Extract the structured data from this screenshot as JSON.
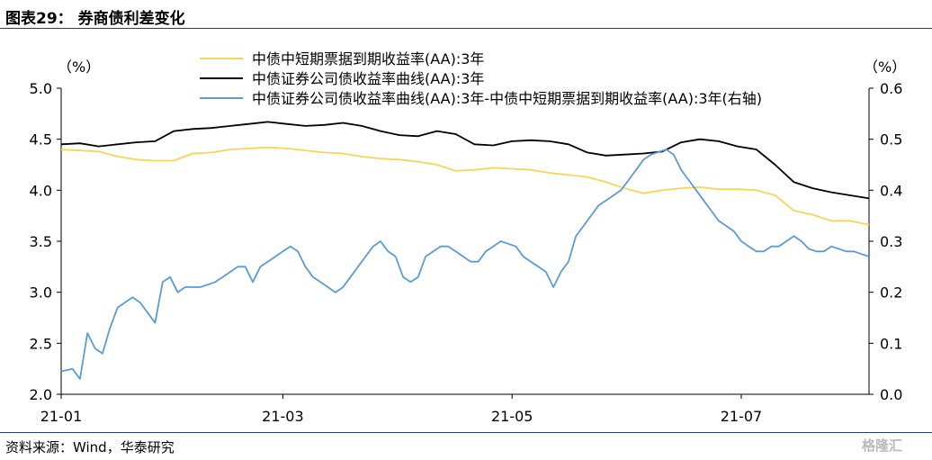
{
  "header": {
    "title": "图表29：  券商债利差变化"
  },
  "footer": {
    "source": "资料来源：Wind，华泰研究",
    "watermark": "格隆汇"
  },
  "chart_data": {
    "type": "line",
    "xlabel": "",
    "ylabel_left": "（%）",
    "ylabel_right": "（%）",
    "ylim_left": [
      2.0,
      5.0
    ],
    "ylim_right": [
      0.0,
      0.6
    ],
    "yticks_left": [
      "2.0",
      "2.5",
      "3.0",
      "3.5",
      "4.0",
      "4.5",
      "5.0"
    ],
    "yticks_right": [
      "0.0",
      "0.1",
      "0.2",
      "0.3",
      "0.4",
      "0.5",
      "0.6"
    ],
    "xticks": [
      "21-01",
      "21-03",
      "21-05",
      "21-07"
    ],
    "xtick_positions": [
      0,
      59,
      120,
      181
    ],
    "xlim": [
      0,
      215
    ],
    "legend_position": "top-center",
    "series": [
      {
        "name": "中债中短期票据到期收益率(AA):3年",
        "color": "#f6d55c",
        "axis": "left",
        "x": [
          0,
          10,
          15,
          20,
          25,
          30,
          35,
          40,
          45,
          50,
          55,
          60,
          65,
          70,
          75,
          80,
          85,
          90,
          95,
          100,
          105,
          110,
          115,
          120,
          125,
          130,
          135,
          140,
          145,
          150,
          155,
          160,
          165,
          170,
          175,
          180,
          185,
          190,
          195,
          200,
          205,
          210,
          215
        ],
        "y": [
          4.4,
          4.38,
          4.33,
          4.3,
          4.29,
          4.29,
          4.36,
          4.37,
          4.4,
          4.41,
          4.42,
          4.41,
          4.39,
          4.37,
          4.36,
          4.33,
          4.31,
          4.3,
          4.28,
          4.25,
          4.19,
          4.2,
          4.22,
          4.21,
          4.2,
          4.17,
          4.15,
          4.13,
          4.08,
          4.02,
          3.97,
          4.0,
          4.02,
          4.03,
          4.01,
          4.01,
          4.0,
          3.95,
          3.8,
          3.76,
          3.7,
          3.7,
          3.66
        ]
      },
      {
        "name": "中债证券公司债收益率曲线(AA):3年",
        "color": "#000000",
        "axis": "left",
        "x": [
          0,
          5,
          10,
          15,
          20,
          25,
          30,
          35,
          40,
          45,
          50,
          55,
          60,
          65,
          70,
          75,
          80,
          85,
          90,
          95,
          100,
          105,
          110,
          115,
          120,
          125,
          130,
          135,
          140,
          145,
          150,
          155,
          160,
          165,
          170,
          175,
          180,
          185,
          190,
          195,
          200,
          205,
          210,
          215
        ],
        "y": [
          4.45,
          4.46,
          4.43,
          4.45,
          4.47,
          4.48,
          4.58,
          4.6,
          4.61,
          4.63,
          4.65,
          4.67,
          4.65,
          4.63,
          4.64,
          4.66,
          4.63,
          4.58,
          4.54,
          4.53,
          4.58,
          4.55,
          4.45,
          4.44,
          4.48,
          4.49,
          4.48,
          4.45,
          4.37,
          4.34,
          4.35,
          4.36,
          4.38,
          4.47,
          4.5,
          4.48,
          4.43,
          4.4,
          4.25,
          4.08,
          4.02,
          3.98,
          3.95,
          3.92
        ]
      },
      {
        "name": "中债证券公司债收益率曲线(AA):3年-中债中短期票据到期收益率(AA):3年(右轴)",
        "color": "#5b9bd5",
        "axis": "right",
        "x": [
          0,
          3,
          5,
          7,
          9,
          11,
          13,
          15,
          17,
          19,
          21,
          23,
          25,
          27,
          29,
          31,
          33,
          35,
          37,
          39,
          41,
          43,
          45,
          47,
          49,
          51,
          53,
          55,
          57,
          59,
          61,
          63,
          65,
          67,
          69,
          71,
          73,
          75,
          77,
          79,
          81,
          83,
          85,
          87,
          89,
          91,
          93,
          95,
          97,
          99,
          101,
          103,
          105,
          107,
          109,
          111,
          113,
          115,
          117,
          119,
          121,
          123,
          125,
          127,
          129,
          131,
          133,
          135,
          137,
          139,
          141,
          143,
          145,
          147,
          149,
          151,
          153,
          155,
          157,
          159,
          161,
          163,
          165,
          167,
          169,
          171,
          173,
          175,
          177,
          179,
          181,
          183,
          185,
          187,
          189,
          191,
          193,
          195,
          197,
          199,
          201,
          203,
          205,
          207,
          209,
          211,
          213,
          215
        ],
        "y": [
          0.045,
          0.05,
          0.03,
          0.12,
          0.09,
          0.08,
          0.13,
          0.17,
          0.18,
          0.19,
          0.18,
          0.16,
          0.14,
          0.22,
          0.23,
          0.2,
          0.21,
          0.21,
          0.21,
          0.215,
          0.22,
          0.23,
          0.24,
          0.25,
          0.25,
          0.22,
          0.25,
          0.26,
          0.27,
          0.28,
          0.29,
          0.28,
          0.25,
          0.23,
          0.22,
          0.21,
          0.2,
          0.21,
          0.23,
          0.25,
          0.27,
          0.29,
          0.3,
          0.28,
          0.27,
          0.23,
          0.22,
          0.23,
          0.27,
          0.28,
          0.29,
          0.29,
          0.28,
          0.27,
          0.26,
          0.26,
          0.28,
          0.29,
          0.3,
          0.295,
          0.29,
          0.27,
          0.26,
          0.25,
          0.24,
          0.21,
          0.24,
          0.26,
          0.31,
          0.33,
          0.35,
          0.37,
          0.38,
          0.39,
          0.4,
          0.42,
          0.44,
          0.46,
          0.47,
          0.475,
          0.48,
          0.47,
          0.44,
          0.42,
          0.4,
          0.38,
          0.36,
          0.34,
          0.33,
          0.32,
          0.3,
          0.29,
          0.28,
          0.28,
          0.29,
          0.29,
          0.3,
          0.31,
          0.3,
          0.285,
          0.28,
          0.28,
          0.29,
          0.285,
          0.28,
          0.28,
          0.275,
          0.27
        ]
      }
    ]
  }
}
